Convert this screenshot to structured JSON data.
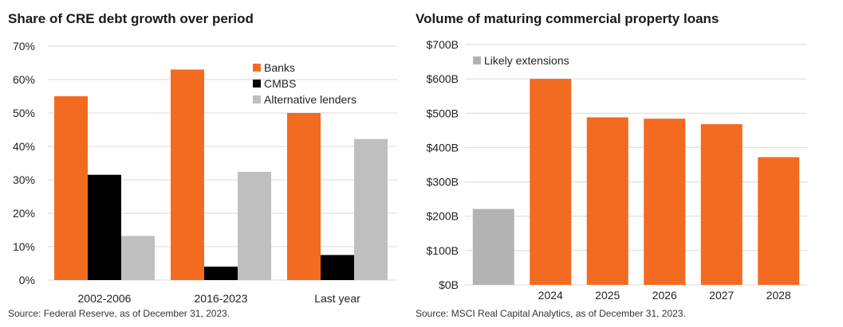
{
  "left_title": "Share of CRE debt growth over period",
  "left_source": "Source: Federal Reserve, as of December 31, 2023.",
  "right_title": "Volume of maturing commercial property loans",
  "right_source": "Source: MSCI Real Capital Analytics, as of December 31, 2023.",
  "colors": {
    "banks": "#f26b21",
    "cmbs": "#000000",
    "alternative": "#bfbfbf",
    "likely_extensions": "#b3b3b3",
    "gridline": "#d9d9d9"
  },
  "chart_data": [
    {
      "type": "bar",
      "title": "Share of CRE debt growth over period",
      "categories": [
        "2002-2006",
        "2016-2023",
        "Last year"
      ],
      "series": [
        {
          "name": "Banks",
          "values": [
            55,
            63,
            50
          ]
        },
        {
          "name": "CMBS",
          "values": [
            31.5,
            4,
            7.5
          ]
        },
        {
          "name": "Alternative lenders",
          "values": [
            13.2,
            32.4,
            42.2
          ]
        }
      ],
      "ylim": [
        0,
        70
      ],
      "yticks": [
        "0%",
        "10%",
        "20%",
        "30%",
        "40%",
        "50%",
        "60%",
        "70%"
      ],
      "grid": true,
      "legend_position": "top-right"
    },
    {
      "type": "bar",
      "title": "Volume of maturing commercial property loans",
      "categories": [
        "",
        "2024",
        "2025",
        "2026",
        "2027",
        "2028"
      ],
      "values": [
        221,
        600,
        488,
        484,
        468,
        372
      ],
      "bar_series": [
        "Likely extensions",
        "",
        "",
        "",
        "",
        ""
      ],
      "legend": [
        "Likely extensions"
      ],
      "ylim": [
        0,
        700
      ],
      "yticks": [
        "$0B",
        "$100B",
        "$200B",
        "$300B",
        "$400B",
        "$500B",
        "$600B",
        "$700B"
      ],
      "grid": true,
      "legend_position": "top-left"
    }
  ]
}
